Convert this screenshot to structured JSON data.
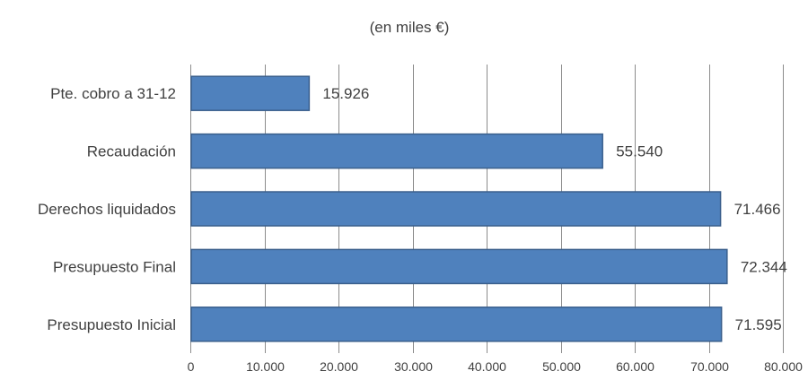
{
  "chart_data": {
    "type": "bar",
    "orientation": "horizontal",
    "title": "(en miles €)",
    "categories": [
      "Pte. cobro a 31-12",
      "Recaudación",
      "Derechos liquidados",
      "Presupuesto Final",
      "Presupuesto Inicial"
    ],
    "values": [
      15926,
      55540,
      71466,
      72344,
      71595
    ],
    "value_labels": [
      "15.926",
      "55.540",
      "71.466",
      "72.344",
      "71.595"
    ],
    "xlim": [
      0,
      80000
    ],
    "x_ticks": [
      0,
      10000,
      20000,
      30000,
      40000,
      50000,
      60000,
      70000,
      80000
    ],
    "x_tick_labels": [
      "0",
      "10.000",
      "20.000",
      "30.000",
      "40.000",
      "50.000",
      "60.000",
      "70.000",
      "80.000"
    ],
    "xlabel": "",
    "ylabel": "",
    "grid": "vertical",
    "legend": "none",
    "colors": {
      "bar": "#4f81bd",
      "bar_border": "#3a5f8c",
      "grid": "#8c8c8c",
      "text": "#404040"
    }
  }
}
